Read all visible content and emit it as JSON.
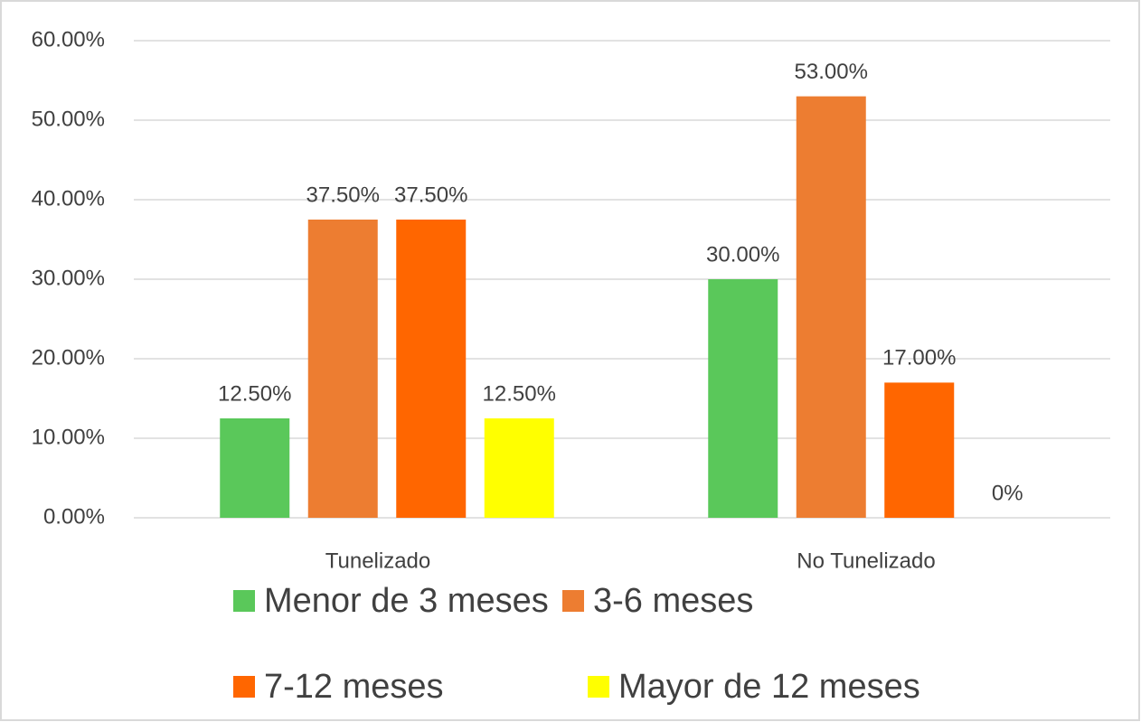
{
  "chart_data": {
    "type": "bar",
    "categories": [
      "Tunelizado",
      "No Tunelizado"
    ],
    "series": [
      {
        "name": "Menor de 3 meses",
        "color": "#5ac85a",
        "values": [
          12.5,
          30
        ],
        "value_labels": [
          "12.50%",
          "30.00%"
        ]
      },
      {
        "name": "3-6 meses",
        "color": "#ed7d31",
        "values": [
          37.5,
          53
        ],
        "value_labels": [
          "37.50%",
          "53.00%"
        ]
      },
      {
        "name": "7-12 meses",
        "color": "#ff6600",
        "values": [
          37.5,
          17
        ],
        "value_labels": [
          "37.50%",
          "17.00%"
        ]
      },
      {
        "name": "Mayor de 12 meses",
        "color": "#ffff00",
        "values": [
          12.5,
          0
        ],
        "value_labels": [
          "12.50%",
          "0%"
        ]
      }
    ],
    "ylim": [
      0,
      60
    ],
    "yticks": [
      {
        "value": 0,
        "label": "0.00%"
      },
      {
        "value": 10,
        "label": "10.00%"
      },
      {
        "value": 20,
        "label": "20.00%"
      },
      {
        "value": 30,
        "label": "30.00%"
      },
      {
        "value": 40,
        "label": "40.00%"
      },
      {
        "value": 50,
        "label": "50.00%"
      },
      {
        "value": 60,
        "label": "60.00%"
      }
    ],
    "grid": true,
    "legend": "bottom"
  }
}
